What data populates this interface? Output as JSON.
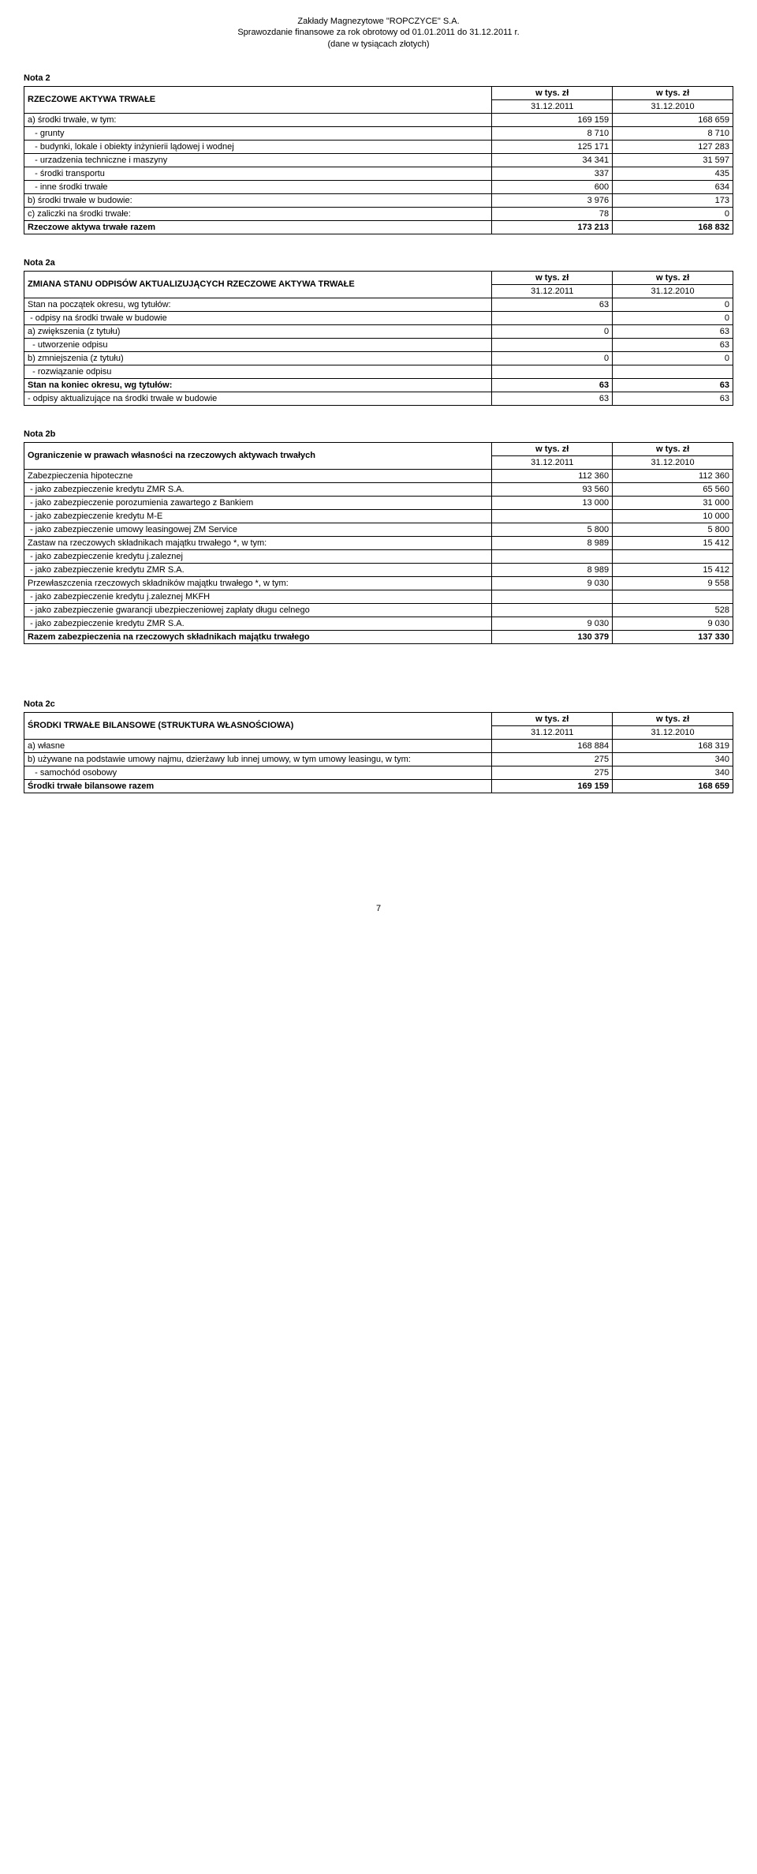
{
  "doc_header": {
    "line1": "Zakłady Magnezytowe \"ROPCZYCE\" S.A.",
    "line2": "Sprawozdanie finansowe za rok obrotowy od 01.01.2011 do 31.12.2011 r.",
    "line3": "(dane w tysiącach złotych)"
  },
  "unit_header": {
    "left": "w tys. zł",
    "right": "w tys. zł"
  },
  "dates": {
    "d1": "31.12.2011",
    "d2": "31.12.2010"
  },
  "nota2_label": "Nota 2",
  "nota2": {
    "title": "RZECZOWE AKTYWA TRWAŁE",
    "rows": [
      {
        "label": "a) środki trwałe, w tym:",
        "v1": "169 159",
        "v2": "168 659"
      },
      {
        "label": "   - grunty",
        "v1": "8 710",
        "v2": "8 710"
      },
      {
        "label": "   - budynki, lokale i obiekty inżynierii lądowej i wodnej",
        "v1": "125 171",
        "v2": "127 283"
      },
      {
        "label": "   - urzadzenia techniczne i maszyny",
        "v1": "34 341",
        "v2": "31 597"
      },
      {
        "label": "   - środki transportu",
        "v1": "337",
        "v2": "435"
      },
      {
        "label": "   - inne środki trwałe",
        "v1": "600",
        "v2": "634"
      },
      {
        "label": "b) środki trwałe w budowie:",
        "v1": "3 976",
        "v2": "173"
      },
      {
        "label": "c) zaliczki na środki trwałe:",
        "v1": "78",
        "v2": "0"
      }
    ],
    "total": {
      "label": "Rzeczowe aktywa trwałe razem",
      "v1": "173 213",
      "v2": "168 832"
    }
  },
  "nota2a_label": "Nota 2a",
  "nota2a": {
    "title": "ZMIANA STANU ODPISÓW AKTUALIZUJĄCYCH RZECZOWE AKTYWA TRWAŁE",
    "rows": [
      {
        "label": "Stan na początek okresu, wg tytułów:",
        "v1": "63",
        "v2": "0"
      },
      {
        "label": " - odpisy na środki trwałe w budowie",
        "v1": "",
        "v2": "0"
      },
      {
        "label": "a) zwiększenia (z tytułu)",
        "v1": "0",
        "v2": "63"
      },
      {
        "label": "  - utworzenie odpisu",
        "v1": "",
        "v2": "63"
      },
      {
        "label": "b) zmniejszenia (z tytułu)",
        "v1": "0",
        "v2": "0"
      },
      {
        "label": "  - rozwiązanie odpisu",
        "v1": "",
        "v2": ""
      }
    ],
    "total1": {
      "label": "Stan na koniec okresu, wg tytułów:",
      "v1": "63",
      "v2": "63"
    },
    "total2": {
      "label": " - odpisy aktualizujące na środki trwałe w budowie",
      "v1": "63",
      "v2": "63"
    }
  },
  "nota2b_label": "Nota 2b",
  "nota2b": {
    "title": "Ograniczenie w prawach własności na rzeczowych aktywach trwałych",
    "rows": [
      {
        "label": "Zabezpieczenia hipoteczne",
        "v1": "112 360",
        "v2": "112 360"
      },
      {
        "label": " - jako zabezpieczenie kredytu ZMR S.A.",
        "v1": "93 560",
        "v2": "65 560"
      },
      {
        "label": " - jako zabezpieczenie porozumienia zawartego z Bankiem",
        "v1": "13 000",
        "v2": "31 000"
      },
      {
        "label": " - jako zabezpieczenie kredytu M-E",
        "v1": "",
        "v2": "10 000"
      },
      {
        "label": " - jako zabezpieczenie umowy leasingowej ZM Service",
        "v1": "5 800",
        "v2": "5 800"
      },
      {
        "label": "Zastaw na rzeczowych składnikach majątku trwałego *, w tym:",
        "v1": "8 989",
        "v2": "15 412"
      },
      {
        "label": " - jako zabezpieczenie kredytu j.zaleznej",
        "v1": "",
        "v2": ""
      },
      {
        "label": " - jako zabezpieczenie kredytu ZMR S.A.",
        "v1": "8 989",
        "v2": "15 412"
      },
      {
        "label": "Przewłaszczenia rzeczowych składników majątku trwałego *, w tym:",
        "v1": "9 030",
        "v2": "9 558"
      },
      {
        "label": " - jako zabezpieczenie kredytu j.zaleznej MKFH",
        "v1": "",
        "v2": ""
      },
      {
        "label": " - jako zabezpieczenie gwarancji ubezpieczeniowej zapłaty długu celnego",
        "v1": "",
        "v2": "528"
      },
      {
        "label": " - jako zabezpieczenie kredytu ZMR S.A.",
        "v1": "9 030",
        "v2": "9 030"
      }
    ],
    "total": {
      "label": "Razem zabezpieczenia na rzeczowych składnikach majątku trwałego",
      "v1": "130 379",
      "v2": "137 330"
    }
  },
  "nota2c_label": "Nota 2c",
  "nota2c": {
    "title": "ŚRODKI TRWAŁE BILANSOWE (STRUKTURA WŁASNOŚCIOWA)",
    "rows": [
      {
        "label": "a) własne",
        "v1": "168 884",
        "v2": "168 319"
      },
      {
        "label": "b) używane na podstawie umowy najmu, dzierżawy lub innej umowy, w tym umowy leasingu, w tym:",
        "v1": "275",
        "v2": "340"
      },
      {
        "label": "   - samochód osobowy",
        "v1": "275",
        "v2": "340"
      }
    ],
    "total": {
      "label": "Środki trwałe bilansowe razem",
      "v1": "169 159",
      "v2": "168 659"
    }
  },
  "page_number": "7"
}
